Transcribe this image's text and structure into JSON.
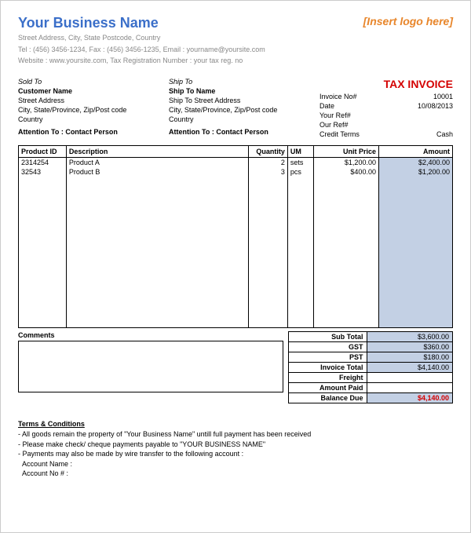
{
  "colors": {
    "business_name": "#3b6fc9",
    "logo_placeholder": "#e8862b",
    "invoice_title": "#d40000",
    "balance_due": "#d40000",
    "amount_shade": "#c3d0e4",
    "muted": "#888888"
  },
  "header": {
    "business_name": "Your Business Name",
    "line1": "Street Address, City, State Postcode, Country",
    "line2": "Tel : (456) 3456-1234, Fax : (456) 3456-1235, Email : yourname@yoursite.com",
    "line3": "Website : www.yoursite.com, Tax Registration Number : your tax reg. no",
    "logo_placeholder": "[Insert logo here]"
  },
  "sold_to": {
    "heading": "Sold To",
    "name": "Customer Name",
    "street": "Street Address",
    "region": "City, State/Province, Zip/Post code",
    "country": "Country",
    "attn_label": "Attention To : Contact Person"
  },
  "ship_to": {
    "heading": "Ship To",
    "name": "Ship To Name",
    "street": "Ship To Street Address",
    "region": "City, State/Province, Zip/Post code",
    "country": "Country",
    "attn_label": "Attention To : Contact Person"
  },
  "invoice": {
    "title": "TAX INVOICE",
    "no_label": "Invoice No#",
    "no": "10001",
    "date_label": "Date",
    "date": "10/08/2013",
    "your_ref_label": "Your Ref#",
    "your_ref": "",
    "our_ref_label": "Our Ref#",
    "our_ref": "",
    "terms_label": "Credit Terms",
    "terms": "Cash"
  },
  "columns": {
    "product_id": "Product ID",
    "description": "Description",
    "quantity": "Quantity",
    "um": "UM",
    "unit_price": "Unit Price",
    "amount": "Amount"
  },
  "rows": [
    {
      "pid": "2314254",
      "desc": "Product A",
      "qty": "2",
      "um": "sets",
      "price": "$1,200.00",
      "amount": "$2,400.00"
    },
    {
      "pid": "32543",
      "desc": "Product B",
      "qty": "3",
      "um": "pcs",
      "price": "$400.00",
      "amount": "$1,200.00"
    }
  ],
  "comments_label": "Comments",
  "totals": {
    "subtotal_label": "Sub Total",
    "subtotal": "$3,600.00",
    "gst_label": "GST",
    "gst": "$360.00",
    "pst_label": "PST",
    "pst": "$180.00",
    "invoice_total_label": "Invoice Total",
    "invoice_total": "$4,140.00",
    "freight_label": "Freight",
    "freight": "",
    "amount_paid_label": "Amount Paid",
    "amount_paid": "",
    "balance_due_label": "Balance Due",
    "balance_due": "$4,140.00"
  },
  "terms_block": {
    "heading": "Terms & Conditions",
    "l1": "- All goods remain the property of \"Your Business Name\" untill full payment has been received",
    "l2": "- Please make check/ cheque payments payable to \"YOUR BUSINESS NAME\"",
    "l3": "- Payments may also be made by wire transfer to the following account :",
    "l4": "  Account Name :",
    "l5": "  Account No # :"
  },
  "layout": {
    "col_widths_pct": {
      "pid": 11,
      "desc": 42,
      "qty": 9,
      "um": 6,
      "price": 15,
      "amount": 17
    },
    "blank_rows": 16
  }
}
